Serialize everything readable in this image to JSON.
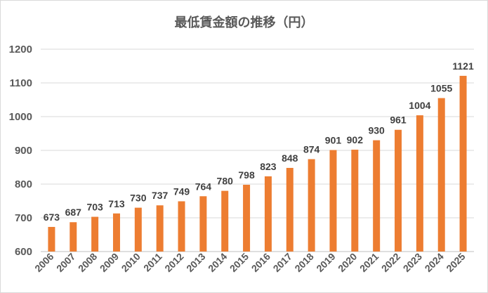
{
  "chart_data": {
    "type": "bar",
    "title": "最低賃金額の推移（円）",
    "categories": [
      "2006",
      "2007",
      "2008",
      "2009",
      "2010",
      "2011",
      "2012",
      "2013",
      "2014",
      "2015",
      "2016",
      "2017",
      "2018",
      "2019",
      "2020",
      "2021",
      "2022",
      "2023",
      "2024",
      "2025"
    ],
    "values": [
      673,
      687,
      703,
      713,
      730,
      737,
      749,
      764,
      780,
      798,
      823,
      848,
      874,
      901,
      902,
      930,
      961,
      1004,
      1055,
      1121
    ],
    "data_labels": [
      "673",
      "687",
      "703",
      "713",
      "730",
      "737",
      "749",
      "764",
      "780",
      "798",
      "823",
      "848",
      "874",
      "901",
      "902",
      "930",
      "961",
      "1004",
      "1055",
      "1121"
    ],
    "ylim": [
      600,
      1200
    ],
    "yticks": [
      600,
      700,
      800,
      900,
      1000,
      1100,
      1200
    ],
    "ytick_labels": [
      "600",
      "700",
      "800",
      "900",
      "1000",
      "1100",
      "1200"
    ],
    "grid": true,
    "bar_color": "#ED7D31",
    "legend": "none"
  }
}
